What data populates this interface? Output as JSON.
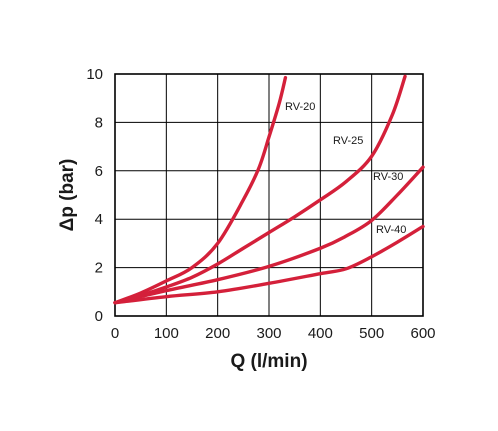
{
  "chart_data": {
    "type": "line",
    "title": "",
    "xlabel": "Q (l/min)",
    "ylabel": "Δp (bar)",
    "xlim": [
      0,
      600
    ],
    "ylim": [
      0,
      10
    ],
    "xticks": [
      0,
      100,
      200,
      300,
      400,
      500,
      600
    ],
    "yticks": [
      0,
      2,
      4,
      6,
      8,
      10
    ],
    "grid": true,
    "legend": "inline labels",
    "line_color": "#d4203a",
    "series": [
      {
        "name": "RV-20",
        "x": [
          0,
          50,
          100,
          150,
          200,
          250,
          280,
          300,
          320,
          332
        ],
        "y": [
          0.55,
          0.95,
          1.45,
          2.0,
          3.0,
          4.8,
          6.1,
          7.4,
          8.8,
          9.85
        ]
      },
      {
        "name": "RV-25",
        "x": [
          0,
          50,
          100,
          150,
          200,
          250,
          300,
          350,
          400,
          450,
          500,
          540,
          565
        ],
        "y": [
          0.55,
          0.85,
          1.2,
          1.6,
          2.15,
          2.8,
          3.45,
          4.1,
          4.8,
          5.55,
          6.6,
          8.3,
          9.9
        ]
      },
      {
        "name": "RV-30",
        "x": [
          0,
          100,
          200,
          300,
          400,
          450,
          500,
          550,
          600
        ],
        "y": [
          0.55,
          1.05,
          1.5,
          2.05,
          2.8,
          3.3,
          3.95,
          5.0,
          6.15
        ]
      },
      {
        "name": "RV-40",
        "x": [
          0,
          100,
          200,
          300,
          400,
          450,
          500,
          550,
          600
        ],
        "y": [
          0.55,
          0.8,
          1.0,
          1.35,
          1.75,
          1.95,
          2.45,
          3.05,
          3.7
        ]
      }
    ]
  }
}
